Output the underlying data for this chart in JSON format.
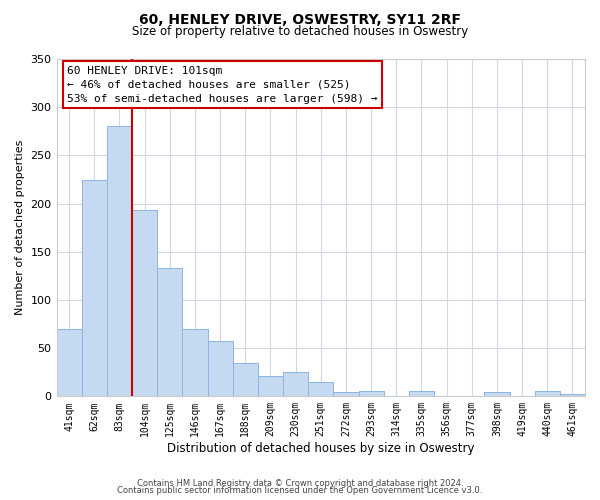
{
  "title": "60, HENLEY DRIVE, OSWESTRY, SY11 2RF",
  "subtitle": "Size of property relative to detached houses in Oswestry",
  "xlabel": "Distribution of detached houses by size in Oswestry",
  "ylabel": "Number of detached properties",
  "bar_labels": [
    "41sqm",
    "62sqm",
    "83sqm",
    "104sqm",
    "125sqm",
    "146sqm",
    "167sqm",
    "188sqm",
    "209sqm",
    "230sqm",
    "251sqm",
    "272sqm",
    "293sqm",
    "314sqm",
    "335sqm",
    "356sqm",
    "377sqm",
    "398sqm",
    "419sqm",
    "440sqm",
    "461sqm"
  ],
  "bar_values": [
    70,
    224,
    280,
    193,
    133,
    70,
    57,
    35,
    21,
    25,
    15,
    5,
    6,
    0,
    6,
    0,
    0,
    4,
    0,
    6,
    2
  ],
  "bar_color": "#c5d9f1",
  "bar_edge_color": "#8db4e2",
  "vline_color": "#cc0000",
  "annotation_title": "60 HENLEY DRIVE: 101sqm",
  "annotation_line1": "← 46% of detached houses are smaller (525)",
  "annotation_line2": "53% of semi-detached houses are larger (598) →",
  "ylim": [
    0,
    350
  ],
  "yticks": [
    0,
    50,
    100,
    150,
    200,
    250,
    300,
    350
  ],
  "footer1": "Contains HM Land Registry data © Crown copyright and database right 2024.",
  "footer2": "Contains public sector information licensed under the Open Government Licence v3.0.",
  "bg_color": "#ffffff",
  "grid_color": "#d0d8e4"
}
